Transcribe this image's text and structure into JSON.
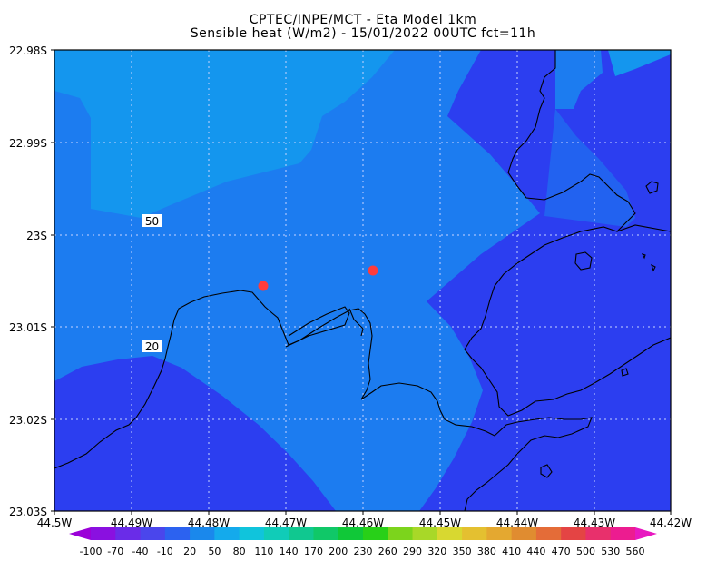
{
  "title": {
    "line1": "CPTEC/INPE/MCT -  Eta Model 1km",
    "line2": "Sensible heat (W/m2) - 15/01/2022 00UTC fct=11h"
  },
  "lat_labels": [
    "22.98S",
    "22.99S",
    "23S",
    "23.01S",
    "23.02S",
    "23.03S"
  ],
  "lon_labels": [
    "44.5W",
    "44.49W",
    "44.48W",
    "44.47W",
    "44.46W",
    "44.45W",
    "44.44W",
    "44.43W",
    "44.42W"
  ],
  "contour_labels": [
    "50",
    "20"
  ],
  "colorbar": {
    "labels": [
      "-100",
      "-70",
      "-40",
      "-10",
      "20",
      "50",
      "80",
      "110",
      "140",
      "170",
      "200",
      "230",
      "260",
      "290",
      "320",
      "350",
      "380",
      "410",
      "440",
      "470",
      "500",
      "530",
      "560"
    ],
    "colors": [
      "#9b00d8",
      "#8a10e0",
      "#6a2ce8",
      "#4a46ec",
      "#2c62f0",
      "#1a88ec",
      "#14aaec",
      "#10c4dc",
      "#10ccb8",
      "#10c890",
      "#10c868",
      "#10c838",
      "#28d018",
      "#7cd41c",
      "#a8d828",
      "#d8d830",
      "#e4c030",
      "#e4a830",
      "#e08c30",
      "#e46c38",
      "#e44444",
      "#e8306c",
      "#ec1c90",
      "#e818c0"
    ]
  },
  "map": {
    "field_colors": {
      "dark": "#2c3ef0",
      "mid": "#1c7cf0",
      "light": "#1496ee"
    },
    "markers_color": "#ff3c3c"
  }
}
